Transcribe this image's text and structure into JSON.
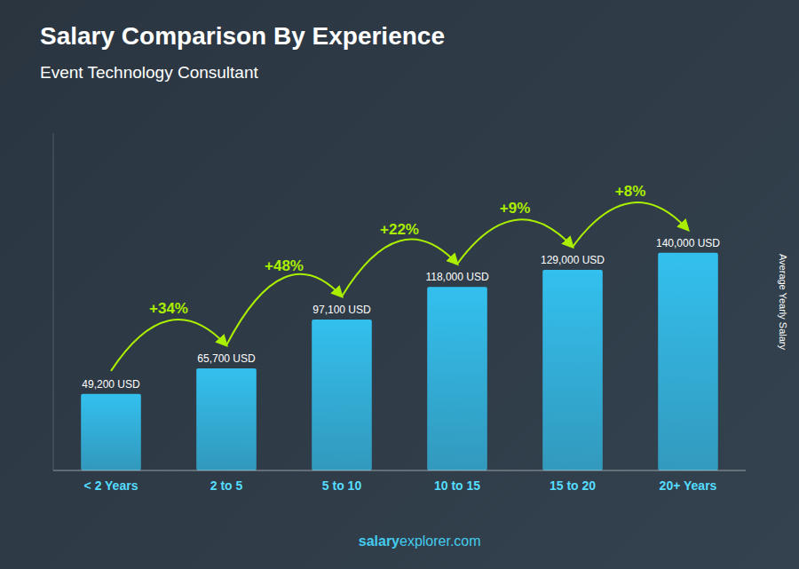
{
  "chart_data": {
    "type": "bar",
    "title": "Salary Comparison By Experience",
    "subtitle": "Event Technology Consultant",
    "categories": [
      "< 2 Years",
      "2 to 5",
      "5 to 10",
      "10 to 15",
      "15 to 20",
      "20+ Years"
    ],
    "values": [
      49200,
      65700,
      97100,
      118000,
      129000,
      140000
    ],
    "value_labels": [
      "49,200 USD",
      "65,700 USD",
      "97,100 USD",
      "118,000 USD",
      "129,000 USD",
      "140,000 USD"
    ],
    "data_labels": true,
    "annotations": [
      "+34%",
      "+48%",
      "+22%",
      "+9%",
      "+8%"
    ],
    "watermark": [
      "salary",
      "explorer.com"
    ],
    "ylabel": "Average Yearly Salary",
    "ylim": [
      0,
      217000
    ],
    "tick_labels": "x",
    "grid": false,
    "color": "#33c0ee"
  }
}
